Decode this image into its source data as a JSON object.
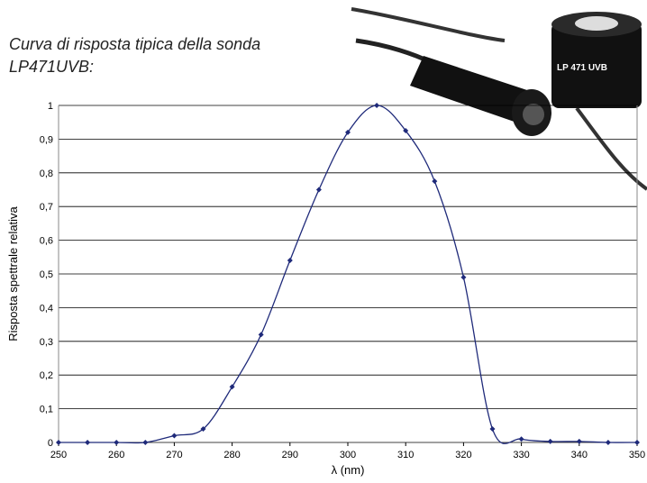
{
  "chart_data": {
    "type": "line",
    "title": [
      "Curva di risposta tipica della sonda",
      "LP471UVB:"
    ],
    "product_label": "LP 471 UVB",
    "xlabel": "λ (nm)",
    "ylabel": "Risposta spettrale relativa",
    "x": [
      250,
      255,
      260,
      265,
      270,
      275,
      280,
      285,
      290,
      295,
      300,
      305,
      310,
      315,
      320,
      325,
      330,
      335,
      340,
      345,
      350
    ],
    "series": [
      {
        "name": "LP471UVB",
        "color": "#1f2a7a",
        "values": [
          0,
          0,
          0,
          0,
          0.02,
          0.04,
          0.165,
          0.32,
          0.54,
          0.75,
          0.92,
          1.0,
          0.925,
          0.775,
          0.49,
          0.04,
          0.01,
          0.003,
          0.003,
          0,
          0
        ]
      }
    ],
    "xlim": [
      250,
      350
    ],
    "xticks": [
      250,
      260,
      270,
      280,
      290,
      300,
      310,
      320,
      330,
      340,
      350
    ],
    "ylim": [
      0,
      1
    ],
    "yticks": [
      0,
      {
        "value": 0.1,
        "label": "0,1"
      },
      {
        "value": 0.2,
        "label": "0,2"
      },
      {
        "value": 0.3,
        "label": "0,3"
      },
      {
        "value": 0.4,
        "label": "0,4"
      },
      {
        "value": 0.5,
        "label": "0,5"
      },
      {
        "value": 0.6,
        "label": "0,6"
      },
      {
        "value": 0.7,
        "label": "0,7"
      },
      {
        "value": 0.8,
        "label": "0,8"
      },
      {
        "value": 0.9,
        "label": "0,9"
      },
      1
    ],
    "grid": true
  }
}
